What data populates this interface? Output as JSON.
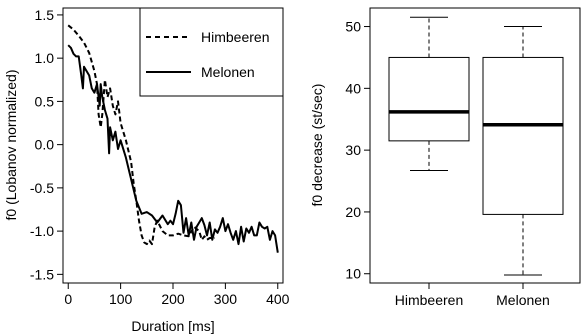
{
  "chart_data": [
    {
      "type": "line",
      "xlabel": "Duration [ms]",
      "ylabel": "f0 (Lobanov normalized)",
      "xlim": [
        -10,
        410
      ],
      "ylim": [
        -1.6,
        1.58
      ],
      "xticks": [
        0,
        100,
        200,
        300,
        400
      ],
      "xtick_labels": [
        "0",
        "100",
        "200",
        "300",
        "400"
      ],
      "yticks": [
        -1.5,
        -1.0,
        -0.5,
        0.0,
        0.5,
        1.0,
        1.5
      ],
      "ytick_labels": [
        "-1.5",
        "-1.0",
        "-0.5",
        "0.0",
        "0.5",
        "1.0",
        "1.5"
      ],
      "grid": false,
      "legend_position": "top-right",
      "series": [
        {
          "name": "Himbeeren",
          "line_style": "dashed",
          "x": [
            0,
            10,
            20,
            30,
            40,
            50,
            55,
            58,
            62,
            65,
            70,
            75,
            80,
            85,
            90,
            95,
            100,
            110,
            120,
            125,
            130,
            135,
            140,
            145,
            150,
            155,
            160,
            165,
            170,
            180,
            190,
            200,
            210,
            220,
            230,
            240,
            250,
            255,
            260,
            265,
            270,
            280
          ],
          "y": [
            1.38,
            1.33,
            1.26,
            1.18,
            1.06,
            0.85,
            0.7,
            0.35,
            0.2,
            0.35,
            0.75,
            0.55,
            0.65,
            0.45,
            0.35,
            0.5,
            0.25,
            0.05,
            -0.2,
            -0.45,
            -0.65,
            -0.88,
            -1.05,
            -1.13,
            -1.15,
            -1.11,
            -1.15,
            -0.95,
            -0.88,
            -1.0,
            -1.05,
            -1.05,
            -1.03,
            -1.05,
            -1.06,
            -0.95,
            -1.0,
            -1.1,
            -1.06,
            -1.1,
            -1.08,
            -1.08
          ]
        },
        {
          "name": "Melonen",
          "line_style": "solid",
          "x": [
            0,
            5,
            10,
            15,
            20,
            25,
            28,
            30,
            35,
            40,
            45,
            50,
            55,
            60,
            62,
            65,
            70,
            75,
            78,
            80,
            85,
            90,
            95,
            100,
            110,
            120,
            130,
            140,
            150,
            160,
            170,
            180,
            190,
            195,
            200,
            205,
            210,
            215,
            220,
            225,
            230,
            235,
            240,
            245,
            250,
            255,
            260,
            265,
            270,
            275,
            280,
            285,
            290,
            295,
            300,
            305,
            310,
            315,
            320,
            325,
            330,
            335,
            340,
            345,
            350,
            355,
            360,
            365,
            370,
            375,
            380,
            385,
            390,
            395,
            400
          ],
          "y": [
            1.15,
            1.12,
            1.05,
            1.02,
            1.02,
            0.8,
            0.65,
            0.9,
            0.85,
            0.8,
            0.65,
            0.6,
            0.7,
            0.45,
            0.7,
            0.55,
            0.4,
            0.3,
            -0.1,
            0.2,
            0.05,
            0.15,
            -0.05,
            0.05,
            -0.15,
            -0.4,
            -0.65,
            -0.8,
            -0.78,
            -0.82,
            -0.9,
            -0.82,
            -0.92,
            -0.88,
            -0.92,
            -0.8,
            -0.65,
            -0.7,
            -1.02,
            -0.85,
            -1.05,
            -0.9,
            -1.1,
            -0.95,
            -0.9,
            -0.85,
            -0.93,
            -1.05,
            -0.9,
            -1.1,
            -0.98,
            -1.02,
            -0.95,
            -0.85,
            -1.0,
            -0.92,
            -1.02,
            -1.1,
            -1.0,
            -1.15,
            -0.95,
            -1.12,
            -0.97,
            -1.02,
            -0.95,
            -1.05,
            -1.05,
            -0.9,
            -0.95,
            -0.97,
            -0.95,
            -1.1,
            -1.0,
            -1.05,
            -1.25
          ]
        }
      ]
    },
    {
      "type": "box",
      "xlabel": "",
      "ylabel": "f0 decrease (st/sec)",
      "ylim": [
        8.5,
        53.0
      ],
      "yticks": [
        10,
        20,
        30,
        40,
        50
      ],
      "ytick_labels": [
        "10",
        "20",
        "30",
        "40",
        "50"
      ],
      "grid": false,
      "categories": [
        "Himbeeren",
        "Melonen"
      ],
      "boxes": [
        {
          "name": "Himbeeren",
          "whisker_low": 26.7,
          "q1": 31.5,
          "median": 36.2,
          "q3": 45.0,
          "whisker_high": 51.5
        },
        {
          "name": "Melonen",
          "whisker_low": 9.8,
          "q1": 19.6,
          "median": 34.1,
          "q3": 45.0,
          "whisker_high": 50.0
        }
      ]
    }
  ]
}
